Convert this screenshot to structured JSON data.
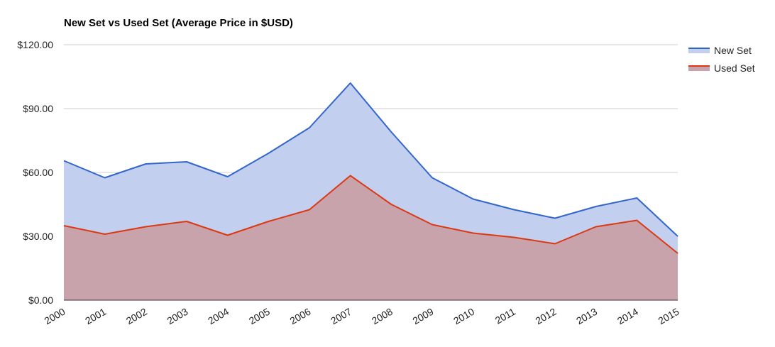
{
  "chart_data": {
    "type": "area",
    "title": "New Set vs Used Set (Average Price in $USD)",
    "xlabel": "",
    "ylabel": "",
    "categories": [
      "2000",
      "2001",
      "2002",
      "2003",
      "2004",
      "2005",
      "2006",
      "2007",
      "2008",
      "2009",
      "2010",
      "2011",
      "2012",
      "2013",
      "2014",
      "2015"
    ],
    "ylim": [
      0,
      120
    ],
    "y_ticks": [
      "$0.00",
      "$30.00",
      "$60.00",
      "$90.00",
      "$120.00"
    ],
    "grid": true,
    "legend_position": "right",
    "series": [
      {
        "name": "New Set",
        "color": "#3366cc",
        "fill": "#c2cfee",
        "values": [
          65.5,
          57.5,
          64.0,
          65.0,
          58.0,
          69.0,
          81.0,
          102.0,
          79.0,
          57.5,
          47.5,
          42.5,
          38.5,
          44.0,
          48.0,
          30.0
        ]
      },
      {
        "name": "Used Set",
        "color": "#dc3912",
        "fill": "#c9a3ab",
        "values": [
          35.0,
          31.0,
          34.5,
          37.0,
          30.5,
          37.0,
          42.5,
          58.5,
          45.0,
          35.5,
          31.5,
          29.5,
          26.5,
          34.5,
          37.5,
          22.0
        ]
      }
    ]
  }
}
